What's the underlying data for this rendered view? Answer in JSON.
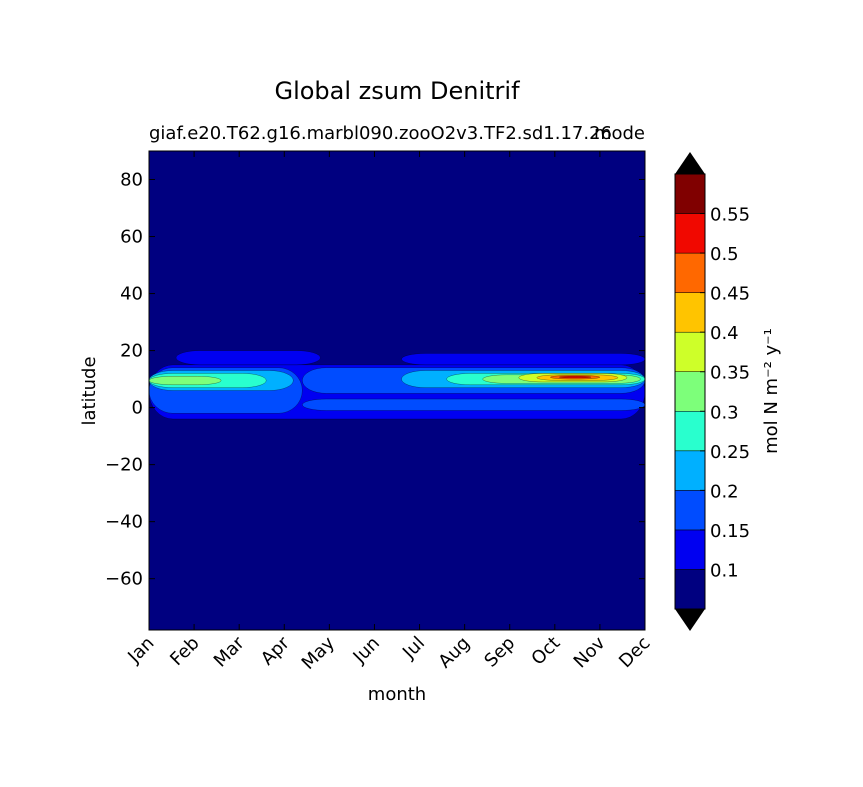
{
  "chart_data": {
    "type": "heatmap",
    "title": "Global zsum Denitrif",
    "subtitle_left": "giaf.e20.T62.g16.marbl090.zooO2v3.TF2.sd1.17.26",
    "subtitle_right": "mode",
    "xlabel": "month",
    "ylabel": "latitude",
    "x_ticks": [
      "Jan",
      "Feb",
      "Mar",
      "Apr",
      "May",
      "Jun",
      "Jul",
      "Aug",
      "Sep",
      "Oct",
      "Nov",
      "Dec"
    ],
    "y_ticks": [
      80,
      60,
      40,
      20,
      0,
      -20,
      -40,
      -60
    ],
    "ylim": [
      -78,
      90
    ],
    "colorbar": {
      "label": "mol N m⁻² y⁻¹",
      "extend": "both",
      "tick_labels": [
        "0.1",
        "0.15",
        "0.2",
        "0.25",
        "0.3",
        "0.35",
        "0.4",
        "0.45",
        "0.5",
        "0.55"
      ],
      "levels": [
        0.05,
        0.1,
        0.15,
        0.2,
        0.25,
        0.3,
        0.35,
        0.4,
        0.45,
        0.5,
        0.55,
        0.6
      ],
      "colors": [
        "#000080",
        "#0000f1",
        "#004cff",
        "#00b0ff",
        "#29ffce",
        "#7dff7a",
        "#ceff29",
        "#ffc400",
        "#ff6800",
        "#f10800",
        "#800000"
      ],
      "under_color": "#000000",
      "over_color": "#000000"
    },
    "bands": [
      {
        "lat": [
          -4,
          15
        ],
        "x": [
          0,
          11
        ],
        "level": 1
      },
      {
        "lat": [
          15,
          20
        ],
        "x": [
          0.6,
          3.8
        ],
        "level": 1
      },
      {
        "lat": [
          15,
          19
        ],
        "x": [
          5.6,
          11
        ],
        "level": 1
      },
      {
        "lat": [
          -2,
          14
        ],
        "x": [
          0,
          3.4
        ],
        "level": 2
      },
      {
        "lat": [
          5,
          14
        ],
        "x": [
          3.4,
          11
        ],
        "level": 2
      },
      {
        "lat": [
          -1,
          3
        ],
        "x": [
          3.4,
          11
        ],
        "level": 2
      },
      {
        "lat": [
          6,
          13
        ],
        "x": [
          0,
          3.2
        ],
        "level": 3
      },
      {
        "lat": [
          7,
          13
        ],
        "x": [
          5.6,
          11
        ],
        "level": 3
      },
      {
        "lat": [
          7,
          12
        ],
        "x": [
          0,
          2.6
        ],
        "level": 4
      },
      {
        "lat": [
          8,
          12
        ],
        "x": [
          6.6,
          11
        ],
        "level": 4
      },
      {
        "lat": [
          8,
          11
        ],
        "x": [
          0,
          1.6
        ],
        "level": 5
      },
      {
        "lat": [
          8.5,
          11.5
        ],
        "x": [
          7.4,
          10.9
        ],
        "level": 5
      },
      {
        "lat": [
          9,
          12
        ],
        "x": [
          8.2,
          10.6
        ],
        "level": 6
      },
      {
        "lat": [
          9.5,
          11.5
        ],
        "x": [
          8.6,
          10.4
        ],
        "level": 7
      },
      {
        "lat": [
          10,
          11.3
        ],
        "x": [
          8.9,
          10.0
        ],
        "level": 8
      },
      {
        "lat": [
          10.4,
          11.0
        ],
        "x": [
          9.1,
          9.8
        ],
        "level": 9
      }
    ]
  }
}
